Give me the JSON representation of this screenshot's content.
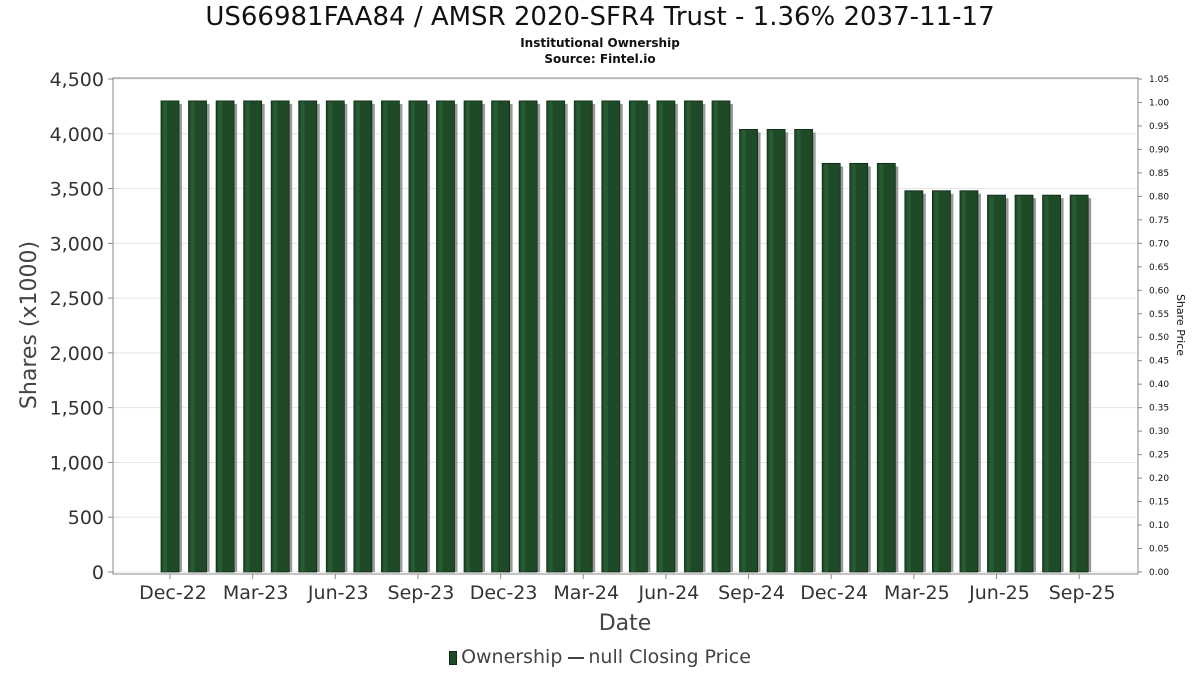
{
  "chart_data": {
    "type": "bar",
    "title": "US66981FAA84 / AMSR 2020-SFR4 Trust - 1.36% 2037-11-17",
    "subtitle": "Institutional Ownership",
    "source": "Source: Fintel.io",
    "xlabel": "Date",
    "ylabel": "Shares (x1000)",
    "y2label": "Share Price",
    "ylim": [
      0,
      4500
    ],
    "y2lim": [
      0,
      1.05
    ],
    "yticks": [
      "0",
      "500",
      "1,000",
      "1,500",
      "2,000",
      "2,500",
      "3,000",
      "3,500",
      "4,000",
      "4,500"
    ],
    "y2ticks": [
      "0.00",
      "0.05",
      "0.10",
      "0.15",
      "0.20",
      "0.25",
      "0.30",
      "0.35",
      "0.40",
      "0.45",
      "0.50",
      "0.55",
      "0.60",
      "0.65",
      "0.70",
      "0.75",
      "0.80",
      "0.85",
      "0.90",
      "0.95",
      "1.00",
      "1.05"
    ],
    "xticks": [
      "Dec-22",
      "Mar-23",
      "Jun-23",
      "Sep-23",
      "Dec-23",
      "Mar-24",
      "Jun-24",
      "Sep-24",
      "Dec-24",
      "Mar-25",
      "Jun-25",
      "Sep-25"
    ],
    "grid": true,
    "legend_position": "bottom",
    "series": [
      {
        "name": "Ownership",
        "color": "#1e4a28",
        "values": [
          4300,
          4300,
          4300,
          4300,
          4300,
          4300,
          4300,
          4300,
          4300,
          4300,
          4300,
          4300,
          4300,
          4300,
          4300,
          4300,
          4300,
          4300,
          4300,
          4300,
          4300,
          4040,
          4040,
          4040,
          3730,
          3730,
          3730,
          3480,
          3480,
          3480,
          3440,
          3440,
          3440,
          3440
        ]
      }
    ]
  },
  "legend": {
    "ownership_label": "Ownership",
    "price_label": "null Closing Price"
  }
}
